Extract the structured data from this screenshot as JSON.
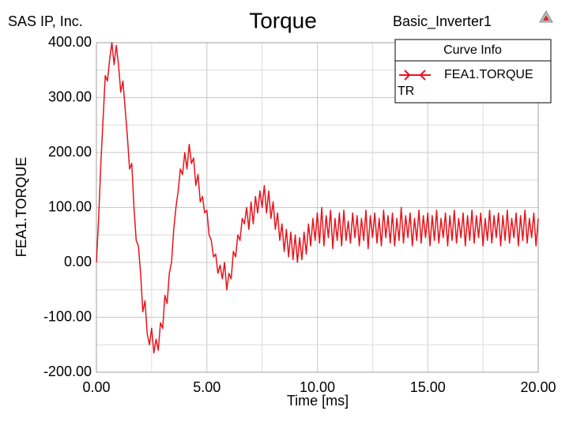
{
  "chart_data": {
    "type": "line",
    "title": "Torque",
    "header_left": "SAS IP, Inc.",
    "header_right": "Basic_Inverter1",
    "xlabel": "Time [ms]",
    "ylabel": "FEA1.TORQUE",
    "legend_title": "Curve Info",
    "legend_note": "TR",
    "legend": "top-right",
    "grid": true,
    "xlim": [
      0,
      20
    ],
    "ylim": [
      -200,
      400
    ],
    "xticks": [
      {
        "value": 0,
        "label": "0.00"
      },
      {
        "value": 5,
        "label": "5.00"
      },
      {
        "value": 10,
        "label": "10.00"
      },
      {
        "value": 15,
        "label": "15.00"
      },
      {
        "value": 20,
        "label": "20.00"
      }
    ],
    "yticks": [
      {
        "value": -200,
        "label": "-200.00"
      },
      {
        "value": -100,
        "label": "-100.00"
      },
      {
        "value": 0,
        "label": "0.00"
      },
      {
        "value": 100,
        "label": "100.00"
      },
      {
        "value": 200,
        "label": "200.00"
      },
      {
        "value": 300,
        "label": "300.00"
      },
      {
        "value": 400,
        "label": "400.00"
      }
    ],
    "xminorticks": [
      2.5,
      7.5,
      12.5,
      17.5
    ],
    "yminorticks": [
      -150,
      -50,
      50,
      150,
      250,
      350
    ],
    "x": [
      0,
      0.1,
      0.2,
      0.3,
      0.4,
      0.5,
      0.6,
      0.7,
      0.8,
      0.9,
      1,
      1.1,
      1.2,
      1.3,
      1.4,
      1.5,
      1.6,
      1.7,
      1.8,
      1.9,
      2,
      2.1,
      2.2,
      2.3,
      2.4,
      2.5,
      2.6,
      2.7,
      2.8,
      2.9,
      3,
      3.1,
      3.2,
      3.3,
      3.4,
      3.5,
      3.6,
      3.7,
      3.8,
      3.9,
      4,
      4.1,
      4.2,
      4.3,
      4.4,
      4.5,
      4.6,
      4.7,
      4.8,
      4.9,
      5,
      5.1,
      5.2,
      5.3,
      5.4,
      5.5,
      5.6,
      5.7,
      5.8,
      5.9,
      6,
      6.1,
      6.2,
      6.3,
      6.4,
      6.5,
      6.6,
      6.7,
      6.8,
      6.9,
      7,
      7.1,
      7.2,
      7.3,
      7.4,
      7.5,
      7.6,
      7.7,
      7.8,
      7.9,
      8,
      8.1,
      8.2,
      8.3,
      8.4,
      8.5,
      8.6,
      8.7,
      8.8,
      8.9,
      9,
      9.1,
      9.2,
      9.3,
      9.4,
      9.5,
      9.6,
      9.7,
      9.8,
      9.9,
      10,
      10.1,
      10.2,
      10.3,
      10.4,
      10.5,
      10.6,
      10.7,
      10.8,
      10.9,
      11,
      11.1,
      11.2,
      11.3,
      11.4,
      11.5,
      11.6,
      11.7,
      11.8,
      11.9,
      12,
      12.1,
      12.2,
      12.3,
      12.4,
      12.5,
      12.6,
      12.7,
      12.8,
      12.9,
      13,
      13.1,
      13.2,
      13.3,
      13.4,
      13.5,
      13.6,
      13.7,
      13.8,
      13.9,
      14,
      14.1,
      14.2,
      14.3,
      14.4,
      14.5,
      14.6,
      14.7,
      14.8,
      14.9,
      15,
      15.1,
      15.2,
      15.3,
      15.4,
      15.5,
      15.6,
      15.7,
      15.8,
      15.9,
      16,
      16.1,
      16.2,
      16.3,
      16.4,
      16.5,
      16.6,
      16.7,
      16.8,
      16.9,
      17,
      17.1,
      17.2,
      17.3,
      17.4,
      17.5,
      17.6,
      17.7,
      17.8,
      17.9,
      18,
      18.1,
      18.2,
      18.3,
      18.4,
      18.5,
      18.6,
      18.7,
      18.8,
      18.9,
      19,
      19.1,
      19.2,
      19.3,
      19.4,
      19.5,
      19.6,
      19.7,
      19.8,
      19.9,
      20
    ],
    "series": [
      {
        "name": "FEA1.TORQUE",
        "color": "#e8141c",
        "values": [
          0,
          80,
          180,
          260,
          340,
          330,
          370,
          400,
          360,
          395,
          360,
          310,
          330,
          280,
          230,
          170,
          180,
          100,
          40,
          30,
          -20,
          -90,
          -70,
          -130,
          -150,
          -120,
          -165,
          -140,
          -160,
          -110,
          -120,
          -60,
          -75,
          -20,
          0,
          60,
          100,
          130,
          170,
          160,
          200,
          170,
          215,
          180,
          190,
          140,
          160,
          110,
          120,
          90,
          95,
          50,
          40,
          10,
          15,
          -20,
          -5,
          -30,
          0,
          -50,
          -20,
          -30,
          20,
          10,
          50,
          40,
          80,
          70,
          100,
          60,
          110,
          70,
          120,
          90,
          130,
          100,
          140,
          90,
          130,
          80,
          110,
          60,
          90,
          40,
          70,
          20,
          60,
          10,
          55,
          5,
          50,
          0,
          45,
          5,
          55,
          15,
          70,
          30,
          80,
          40,
          90,
          35,
          100,
          30,
          85,
          45,
          95,
          25,
          80,
          40,
          90,
          30,
          95,
          40,
          75,
          35,
          90,
          45,
          85,
          30,
          80,
          40,
          95,
          25,
          85,
          45,
          90,
          35,
          80,
          30,
          95,
          45,
          85,
          35,
          90,
          30,
          80,
          40,
          100,
          35,
          85,
          45,
          90,
          30,
          80,
          40,
          95,
          35,
          85,
          45,
          90,
          30,
          85,
          40,
          95,
          35,
          80,
          45,
          90,
          30,
          85,
          40,
          95,
          35,
          80,
          45,
          90,
          30,
          85,
          40,
          95,
          35,
          85,
          45,
          90,
          30,
          80,
          40,
          95,
          35,
          85,
          45,
          90,
          30,
          85,
          40,
          95,
          35,
          80,
          45,
          90,
          30,
          85,
          40,
          95,
          35,
          80,
          45,
          90,
          30,
          80
        ]
      }
    ]
  }
}
